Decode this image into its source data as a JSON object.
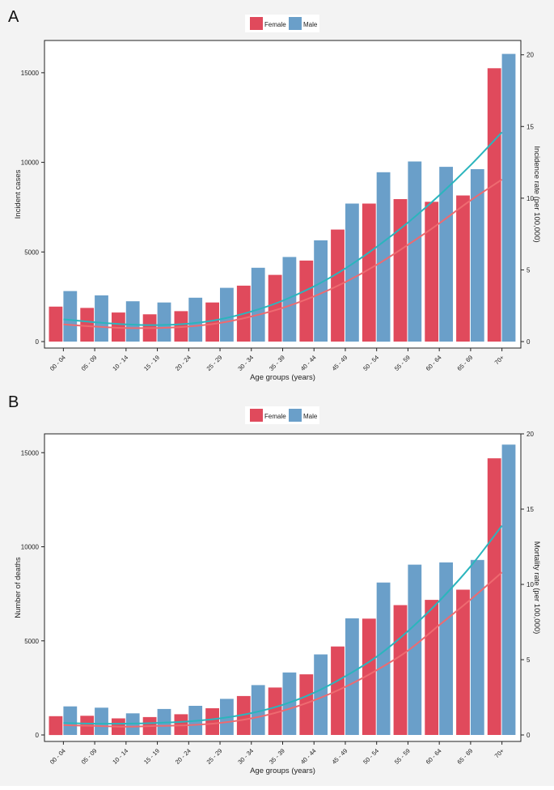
{
  "colors": {
    "female": "#e04a5c",
    "male": "#6a9fc9",
    "female_trend": "#ee6a70",
    "male_trend": "#2bb5bd"
  },
  "chart_data": [
    {
      "type": "bar",
      "panel_label": "A",
      "categories": [
        "00 - 04",
        "05 - 09",
        "10 - 14",
        "15 - 19",
        "20 - 24",
        "25 - 29",
        "30 - 34",
        "35 - 39",
        "40 - 44",
        "45 - 49",
        "50 - 54",
        "55 - 59",
        "60 - 64",
        "65 - 69",
        "70+"
      ],
      "series": [
        {
          "name": "Female",
          "values": [
            1950,
            1880,
            1620,
            1520,
            1700,
            2180,
            3120,
            3720,
            4520,
            6250,
            7700,
            7950,
            7800,
            8150,
            15250
          ]
        },
        {
          "name": "Male",
          "values": [
            2820,
            2580,
            2250,
            2180,
            2450,
            3000,
            4120,
            4720,
            5650,
            7700,
            9450,
            10050,
            9750,
            9620,
            16050
          ]
        }
      ],
      "trend_right_axis": {
        "female": [
          1.2,
          1.05,
          0.95,
          0.95,
          1.05,
          1.3,
          1.75,
          2.35,
          3.15,
          4.15,
          5.35,
          6.75,
          8.25,
          9.85,
          11.3
        ],
        "male": [
          1.55,
          1.35,
          1.2,
          1.15,
          1.25,
          1.55,
          2.1,
          2.85,
          3.85,
          5.1,
          6.6,
          8.3,
          10.2,
          12.3,
          14.6
        ]
      },
      "xlabel": "Age groups (years)",
      "ylabel": "Incident cases",
      "y2label": "Incidence rate (per 100,000)",
      "ylim": [
        0,
        16800
      ],
      "y2lim": [
        0,
        21
      ],
      "yticks": [
        0,
        5000,
        10000,
        15000
      ],
      "y2ticks": [
        0,
        5,
        10,
        15,
        20
      ],
      "legend": [
        "Female",
        "Male"
      ],
      "legend_position": "top-center"
    },
    {
      "type": "bar",
      "panel_label": "B",
      "categories": [
        "00 - 04",
        "05 - 09",
        "10 - 14",
        "15 - 19",
        "20 - 24",
        "25 - 29",
        "30 - 34",
        "35 - 39",
        "40 - 44",
        "45 - 49",
        "50 - 54",
        "55 - 59",
        "60 - 64",
        "65 - 69",
        "70+"
      ],
      "series": [
        {
          "name": "Female",
          "values": [
            1000,
            1020,
            880,
            950,
            1100,
            1420,
            2070,
            2520,
            3220,
            4700,
            6180,
            6900,
            7180,
            7720,
            14700
          ]
        },
        {
          "name": "Male",
          "values": [
            1520,
            1450,
            1150,
            1380,
            1550,
            1920,
            2650,
            3320,
            4280,
            6200,
            8100,
            9050,
            9170,
            9300,
            15430
          ]
        }
      ],
      "trend_right_axis": {
        "female": [
          0.65,
          0.6,
          0.55,
          0.6,
          0.65,
          0.8,
          1.1,
          1.6,
          2.3,
          3.2,
          4.3,
          5.6,
          7.3,
          9.0,
          10.8
        ],
        "male": [
          0.8,
          0.75,
          0.75,
          0.8,
          0.9,
          1.1,
          1.45,
          2.0,
          2.8,
          3.9,
          5.2,
          6.9,
          8.9,
          11.2,
          13.9
        ]
      },
      "xlabel": "Age groups (years)",
      "ylabel": "Number of deaths",
      "y2label": "Mortality rate (per 100,000)",
      "ylim": [
        0,
        16000
      ],
      "y2lim": [
        0,
        20
      ],
      "yticks": [
        0,
        5000,
        10000,
        15000
      ],
      "y2ticks": [
        0,
        5,
        10,
        15,
        20
      ],
      "legend": [
        "Female",
        "Male"
      ],
      "legend_position": "top-center"
    }
  ]
}
